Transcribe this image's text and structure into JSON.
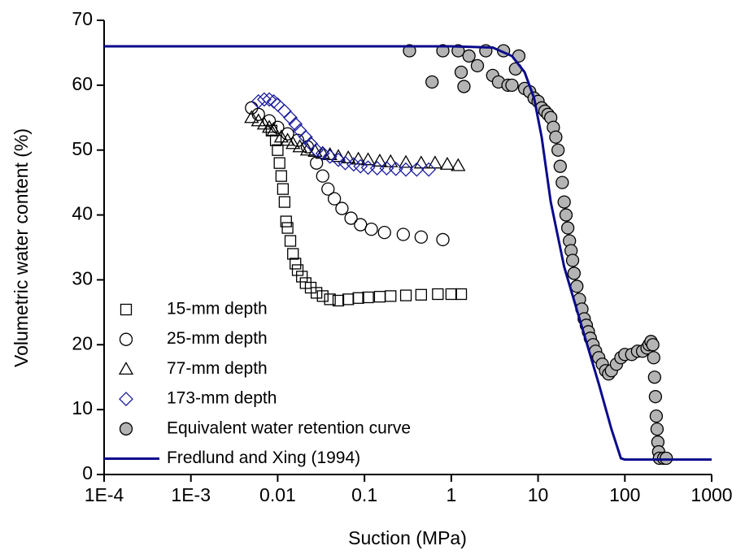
{
  "chart_data": {
    "type": "scatter",
    "x_label": "Suction (MPa)",
    "y_label": "Volumetric water content (%)",
    "x_log": true,
    "xlim": [
      0.0001,
      1000
    ],
    "xticks": [
      {
        "value": 0.0001,
        "label": "1E-4"
      },
      {
        "value": 0.001,
        "label": "1E-3"
      },
      0.01,
      0.1,
      1,
      10,
      100,
      1000
    ],
    "ylim": [
      0,
      70
    ],
    "yticks": [
      0,
      10,
      20,
      30,
      40,
      50,
      60,
      70
    ],
    "legend": "lower left",
    "series": [
      {
        "name": "15-mm depth",
        "marker": "square",
        "color": "#000000",
        "fill": "none",
        "x": [
          0.0085,
          0.0095,
          0.01,
          0.0105,
          0.011,
          0.0115,
          0.012,
          0.0125,
          0.013,
          0.014,
          0.015,
          0.016,
          0.017,
          0.019,
          0.021,
          0.024,
          0.028,
          0.033,
          0.04,
          0.05,
          0.065,
          0.085,
          0.11,
          0.15,
          0.2,
          0.3,
          0.45,
          0.7,
          1.0,
          1.3
        ],
        "values": [
          53,
          51.5,
          50,
          48,
          46,
          44,
          42,
          39,
          38,
          36,
          34,
          32.5,
          31.5,
          30.5,
          29.5,
          28.8,
          28,
          27.5,
          27,
          26.8,
          27,
          27.2,
          27.3,
          27.4,
          27.5,
          27.6,
          27.7,
          27.8,
          27.8,
          27.8
        ]
      },
      {
        "name": "25-mm depth",
        "marker": "circle",
        "color": "#000000",
        "fill": "none",
        "x": [
          0.005,
          0.006,
          0.008,
          0.01,
          0.013,
          0.017,
          0.022,
          0.028,
          0.033,
          0.038,
          0.045,
          0.055,
          0.07,
          0.09,
          0.12,
          0.17,
          0.28,
          0.45,
          0.8
        ],
        "values": [
          56.5,
          55.5,
          54.5,
          53.5,
          52.5,
          51.5,
          50.5,
          48,
          46,
          44,
          42.5,
          41,
          39.5,
          38.5,
          37.8,
          37.3,
          37,
          36.6,
          36.2
        ]
      },
      {
        "name": "77-mm depth",
        "marker": "triangle",
        "color": "#000000",
        "fill": "none",
        "x": [
          0.005,
          0.006,
          0.007,
          0.008,
          0.009,
          0.011,
          0.013,
          0.015,
          0.018,
          0.022,
          0.027,
          0.033,
          0.04,
          0.05,
          0.065,
          0.085,
          0.11,
          0.15,
          0.2,
          0.3,
          0.45,
          0.65,
          0.9,
          1.2
        ],
        "values": [
          55,
          54.5,
          54,
          53.5,
          53,
          52,
          51.5,
          51,
          50.5,
          50,
          49.8,
          49.5,
          49.3,
          49,
          48.8,
          48.6,
          48.5,
          48.3,
          48.2,
          48.1,
          48,
          48,
          47.8,
          47.6
        ]
      },
      {
        "name": "173-mm depth",
        "marker": "diamond",
        "color": "#1c1ca0",
        "fill": "none",
        "x": [
          0.006,
          0.007,
          0.008,
          0.009,
          0.01,
          0.012,
          0.014,
          0.016,
          0.018,
          0.021,
          0.024,
          0.028,
          0.033,
          0.04,
          0.05,
          0.06,
          0.075,
          0.09,
          0.11,
          0.14,
          0.18,
          0.23,
          0.3,
          0.4,
          0.55
        ],
        "values": [
          57.5,
          57.8,
          57.8,
          57.5,
          57,
          56,
          55,
          54,
          53,
          52,
          51,
          50,
          49.5,
          49,
          48.5,
          48,
          47.8,
          47.5,
          47.3,
          47.2,
          47.2,
          47.1,
          47,
          47,
          47
        ]
      },
      {
        "name": "Equivalent water retention curve",
        "marker": "circle",
        "color": "#000000",
        "fill": "#b4b4b4",
        "x": [
          0.33,
          0.6,
          0.8,
          1.2,
          1.3,
          1.4,
          1.6,
          2,
          2.5,
          3,
          3.5,
          4,
          4.5,
          5,
          5.5,
          6,
          7,
          8,
          9,
          10,
          11,
          12,
          13,
          14,
          15,
          16,
          17,
          18,
          19,
          20,
          21,
          22,
          23,
          24,
          25,
          26,
          28,
          30,
          32,
          34,
          36,
          38,
          40,
          43,
          46,
          50,
          55,
          60,
          65,
          70,
          80,
          90,
          100,
          120,
          140,
          160,
          180,
          190,
          200,
          210,
          215,
          220,
          225,
          230,
          235,
          240,
          245,
          250,
          280,
          300
        ],
        "values": [
          65.3,
          60.5,
          65.3,
          65.3,
          62,
          59.8,
          64.5,
          63,
          65.3,
          61.5,
          60.5,
          65.3,
          60,
          60,
          62.5,
          64.5,
          59.5,
          59,
          58,
          57.5,
          56.5,
          56,
          55.5,
          55,
          53.5,
          52,
          50,
          47.5,
          45,
          42,
          40,
          38,
          36,
          34.5,
          33,
          31,
          29,
          27,
          25.5,
          24,
          23,
          22,
          21,
          20,
          19,
          18,
          17,
          16,
          15.5,
          16,
          17,
          18,
          18.5,
          18.5,
          19,
          19,
          19.5,
          20,
          20.5,
          20,
          18,
          15,
          12,
          9,
          7,
          5,
          3.5,
          2.5,
          2.5,
          2.5
        ]
      },
      {
        "name": "Fredlund and Xing (1994)",
        "marker": "line",
        "color": "#0a0a8c",
        "x": [
          0.0001,
          1,
          3,
          5,
          7,
          9,
          11,
          14,
          20,
          30,
          50,
          70,
          90,
          100,
          1000
        ],
        "values": [
          66,
          66,
          65.8,
          64.5,
          62,
          58,
          52,
          42,
          32,
          24,
          14,
          7,
          2.5,
          2.3,
          2.3
        ]
      }
    ]
  }
}
